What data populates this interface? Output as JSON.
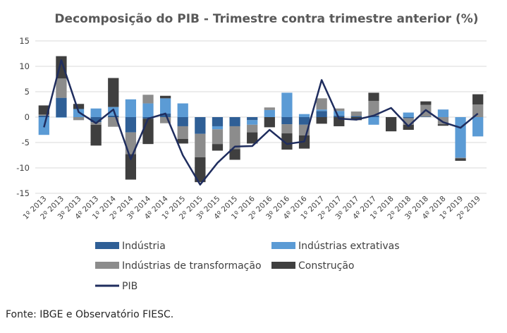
{
  "chart_data": {
    "type": "bar",
    "stacked": true,
    "title": "Decomposição do PIB - Trimestre contra trimestre anterior (%)",
    "source": "Fonte: IBGE e Observatório FIESC.",
    "ylim": [
      -15,
      15
    ],
    "yticks": [
      -15,
      -10,
      -5,
      0,
      5,
      10,
      15
    ],
    "grid": true,
    "legend_position": "bottom",
    "categories": [
      "1º 2013",
      "2º 2013",
      "3º 2013",
      "4º 2013",
      "1º 2014",
      "2º 2014",
      "3º 2014",
      "4º 2014",
      "1º 2015",
      "2º 2015",
      "3º 2015",
      "4º 2015",
      "1º 2016",
      "2º 2016",
      "3º 2016",
      "4º 2016",
      "1º 2017",
      "2º 2017",
      "3º 2017",
      "4º 2017",
      "1º 2018",
      "2º 2018",
      "3º 2018",
      "4º 2018",
      "1º 2019",
      "2º 2019"
    ],
    "series": [
      {
        "name": "Indústria",
        "color": "#2f5f96",
        "values": [
          0.3,
          3.8,
          0.0,
          -1.0,
          0.3,
          -3.0,
          -0.3,
          0.7,
          -1.8,
          -3.3,
          -1.8,
          -1.8,
          -0.6,
          0.0,
          -1.4,
          -1.5,
          1.2,
          0.3,
          0.2,
          0.3,
          0.0,
          -0.2,
          0.1,
          0.0,
          0.0,
          0.0
        ]
      },
      {
        "name": "Indústrias extrativas",
        "color": "#5b9bd5",
        "values": [
          -3.5,
          -0.1,
          1.6,
          1.7,
          1.7,
          3.5,
          2.7,
          3.0,
          2.7,
          0.0,
          -0.6,
          0.0,
          -0.9,
          1.4,
          4.8,
          0.6,
          0.3,
          0.9,
          0.0,
          -1.5,
          0.0,
          0.9,
          0.0,
          1.5,
          -8.0,
          -3.8
        ]
      },
      {
        "name": "Indústrias de transformação",
        "color": "#8c8c8c",
        "values": [
          0.2,
          3.8,
          -0.6,
          -0.5,
          -1.9,
          -4.3,
          1.7,
          -1.2,
          -2.5,
          -4.6,
          -2.9,
          -4.5,
          -1.5,
          0.5,
          -1.8,
          -2.1,
          2.2,
          0.5,
          0.9,
          2.9,
          0.0,
          -1.3,
          2.3,
          -1.4,
          -0.1,
          2.5
        ]
      },
      {
        "name": "Construção",
        "color": "#3f3f3f",
        "values": [
          1.8,
          4.4,
          1.0,
          -4.1,
          5.7,
          -5.0,
          -5.0,
          0.5,
          -0.9,
          -4.9,
          -1.3,
          -2.1,
          -2.2,
          -2.0,
          -3.2,
          -2.6,
          -1.3,
          -1.8,
          -0.6,
          1.6,
          -2.8,
          -1.0,
          0.7,
          -0.3,
          -0.5,
          2.0
        ]
      },
      {
        "name": "PIB",
        "color": "#1f2d5e",
        "type": "line",
        "values": [
          -2.0,
          11.2,
          1.0,
          -1.2,
          1.5,
          -8.3,
          -0.3,
          0.7,
          -7.5,
          -13.3,
          -9.0,
          -5.8,
          -5.7,
          -2.5,
          -5.3,
          -4.8,
          7.3,
          -0.3,
          -0.5,
          0.3,
          1.8,
          -1.8,
          1.4,
          -1.0,
          -2.1,
          0.7
        ]
      }
    ]
  }
}
